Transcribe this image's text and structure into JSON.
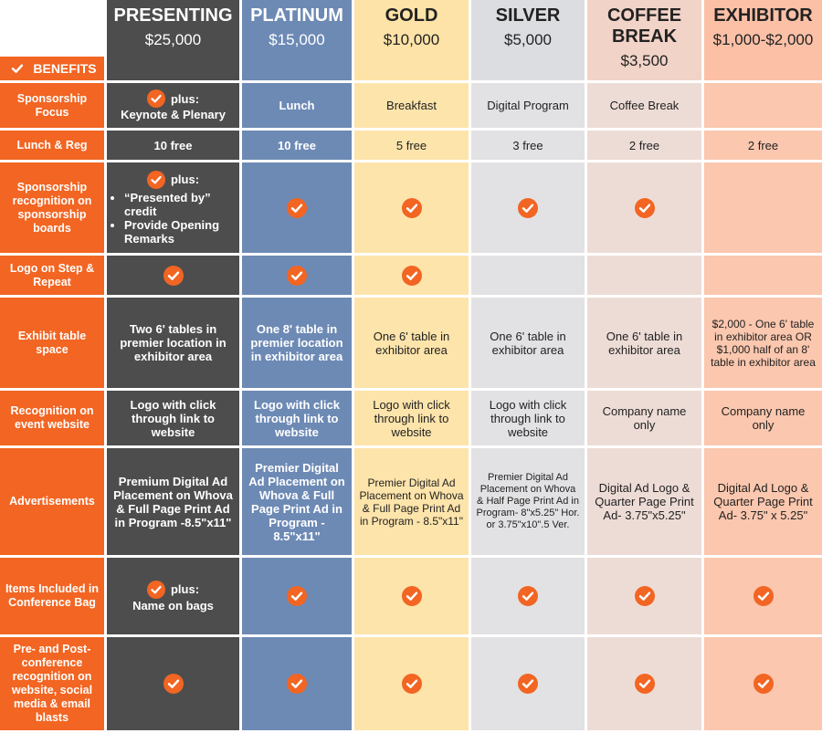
{
  "header": {
    "benefits_label": "BENEFITS",
    "columns": [
      {
        "name": "PRESENTING",
        "price": "$25,000"
      },
      {
        "name": "PLATINUM",
        "price": "$15,000"
      },
      {
        "name": "GOLD",
        "price": "$10,000"
      },
      {
        "name": "SILVER",
        "price": "$5,000"
      },
      {
        "name": "COFFEE BREAK",
        "price": "$3,500"
      },
      {
        "name": "EXHIBITOR",
        "price": "$1,000-$2,000"
      }
    ]
  },
  "rows": [
    {
      "label": "Sponsorship Focus",
      "cells": [
        {
          "check": true,
          "text": "plus:",
          "after": "Keynote & Plenary"
        },
        "Lunch",
        "Breakfast",
        "Digital Program",
        "Coffee Break",
        null
      ]
    },
    {
      "label": "Lunch & Reg",
      "cells": [
        "10 free",
        "10 free",
        "5 free",
        "3 free",
        "2 free",
        "2 free"
      ]
    },
    {
      "label": "Sponsorship recognition on sponsorship boards",
      "cells": [
        {
          "check": true,
          "text": "plus:",
          "bullets": [
            "“Presented by” credit",
            "Provide Opening Remarks"
          ]
        },
        {
          "check": true
        },
        {
          "check": true
        },
        {
          "check": true
        },
        {
          "check": true
        },
        null
      ]
    },
    {
      "label": "Logo on Step & Repeat",
      "cells": [
        {
          "check": true
        },
        {
          "check": true
        },
        {
          "check": true
        },
        null,
        null,
        null
      ]
    },
    {
      "label": "Exhibit table space",
      "cells": [
        "Two 6' tables in premier location in exhibitor area",
        "One 8' table in premier location in exhibitor area",
        "One 6' table in exhibitor area",
        "One 6' table in exhibitor area",
        "One 6' table in exhibitor area",
        "$2,000 - One 6' table in exhibitor area OR $1,000 half of an 8' table in exhibitor area"
      ]
    },
    {
      "label": "Recognition on event website",
      "cells": [
        "Logo with click through link to website",
        "Logo with click through link to website",
        "Logo with click through link to website",
        "Logo with click through link to website",
        "Company name only",
        "Company name only"
      ]
    },
    {
      "label": "Advertisements",
      "cells": [
        "Premium Digital Ad Placement on Whova & Full Page Print Ad in Program -8.5\"x11\"",
        "Premier Digital Ad Placement on Whova & Full Page Print Ad in Program - 8.5\"x11\"",
        "Premier Digital Ad Placement on Whova & Full Page Print Ad in Program - 8.5\"x11\"",
        "Premier Digital Ad Placement on Whova & Half Page Print Ad in Program- 8\"x5.25\" Hor. or 3.75\"x10\".5 Ver.",
        "Digital Ad Logo & Quarter Page Print Ad- 3.75\"x5.25\"",
        "Digital Ad Logo & Quarter Page Print Ad- 3.75\" x 5.25\""
      ]
    },
    {
      "label": "Items Included in Conference Bag",
      "cells": [
        {
          "check": true,
          "text": "plus:",
          "after": "Name on bags"
        },
        {
          "check": true
        },
        {
          "check": true
        },
        {
          "check": true
        },
        {
          "check": true
        },
        {
          "check": true
        }
      ]
    },
    {
      "label": "Pre- and Post-conference recognition on website, social media & email blasts",
      "cells": [
        {
          "check": true
        },
        {
          "check": true
        },
        {
          "check": true
        },
        {
          "check": true
        },
        {
          "check": true
        },
        {
          "check": true
        }
      ]
    }
  ]
}
